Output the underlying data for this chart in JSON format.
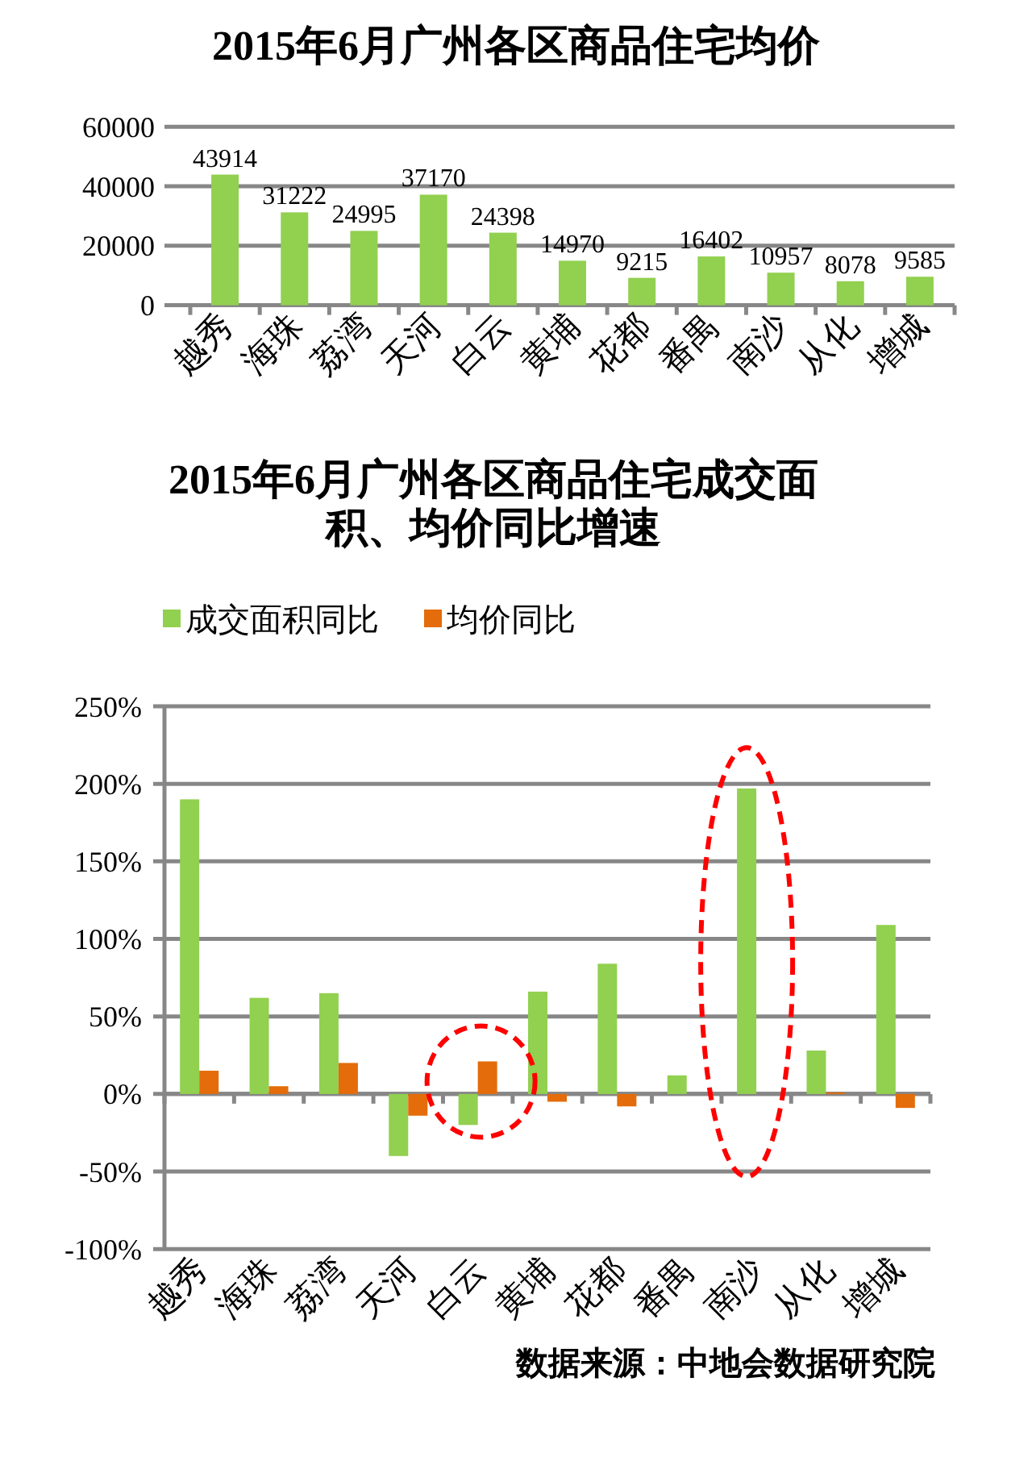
{
  "chart_data": [
    {
      "type": "bar",
      "title": "2015年6月广州各区商品住宅均价",
      "categories": [
        "越秀",
        "海珠",
        "荔湾",
        "天河",
        "白云",
        "黄埔",
        "花都",
        "番禺",
        "南沙",
        "从化",
        "增城"
      ],
      "values": [
        43914,
        31222,
        24995,
        37170,
        24398,
        14970,
        9215,
        16402,
        10957,
        8078,
        9585
      ],
      "color": "#92d050",
      "ylim": [
        0,
        60000
      ],
      "yticks": [
        0,
        20000,
        40000,
        60000
      ],
      "grid": "y",
      "data_labels": true
    },
    {
      "type": "bar",
      "title": "2015年6月广州各区商品住宅成交面积、均价同比增速",
      "categories": [
        "越秀",
        "海珠",
        "荔湾",
        "天河",
        "白云",
        "黄埔",
        "花都",
        "番禺",
        "南沙",
        "从化",
        "增城"
      ],
      "series": [
        {
          "name": "成交面积同比",
          "color": "#92d050",
          "values": [
            190,
            62,
            65,
            -40,
            -20,
            66,
            84,
            12,
            197,
            28,
            109
          ]
        },
        {
          "name": "均价同比",
          "color": "#e46c0a",
          "values": [
            15,
            5,
            20,
            -14,
            21,
            -5,
            -8,
            0,
            0,
            1,
            -9
          ]
        }
      ],
      "ylim": [
        -100,
        250
      ],
      "yticks": [
        {
          "value": -100,
          "label": "-100%"
        },
        {
          "value": -50,
          "label": "-50%"
        },
        {
          "value": 0,
          "label": "0%"
        },
        {
          "value": 50,
          "label": "50%"
        },
        {
          "value": 100,
          "label": "100%"
        },
        {
          "value": 150,
          "label": "150%"
        },
        {
          "value": 200,
          "label": "200%"
        },
        {
          "value": 250,
          "label": "250%"
        }
      ],
      "grid": "y",
      "legend": "top",
      "annotations": [
        "数据来源：中地会数据研究院"
      ]
    }
  ]
}
